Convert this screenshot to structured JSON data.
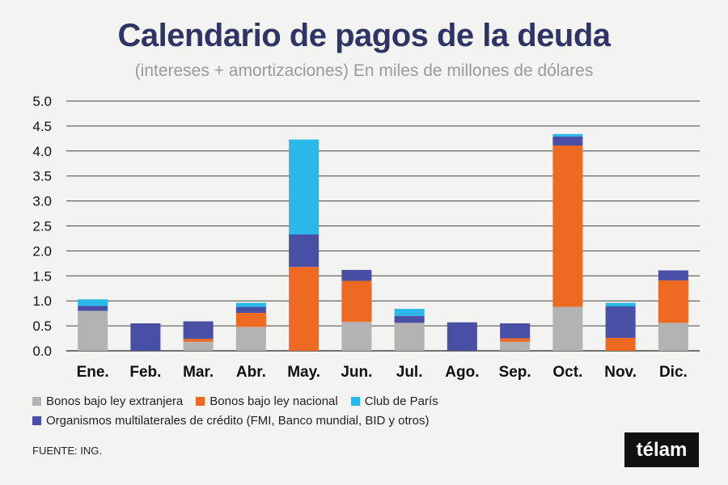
{
  "chart_data": {
    "type": "bar",
    "stacked": true,
    "title": "Calendario de pagos de la deuda",
    "subtitle": "(intereses + amortizaciones) En miles de millones de dólares",
    "categories": [
      "Ene.",
      "Feb.",
      "Mar.",
      "Abr.",
      "May.",
      "Jun.",
      "Jul.",
      "Ago.",
      "Sep.",
      "Oct.",
      "Nov.",
      "Dic."
    ],
    "yticks": [
      "0.0",
      "0.5",
      "1.0",
      "1.5",
      "2.0",
      "2.5",
      "3.0",
      "3.5",
      "4.0",
      "4.5",
      "5.0"
    ],
    "ylim": [
      0,
      5
    ],
    "grid": true,
    "series": [
      {
        "name": "Bonos bajo ley extranjera",
        "color": "#b3b3b3",
        "values": [
          0.8,
          0,
          0.18,
          0.48,
          0,
          0.58,
          0.56,
          0,
          0.18,
          0.88,
          0,
          0.56
        ]
      },
      {
        "name": "Bonos bajo ley nacional",
        "color": "#ee6a22",
        "values": [
          0,
          0,
          0.06,
          0.28,
          1.68,
          0.82,
          0,
          0,
          0.07,
          3.23,
          0.26,
          0.85
        ]
      },
      {
        "name": "Organismos multilaterales de crédito (FMI, Banco mundial, BID y otros)",
        "color": "#4a4fa6",
        "values": [
          0.1,
          0.55,
          0.35,
          0.12,
          0.65,
          0.22,
          0.14,
          0.57,
          0.3,
          0.18,
          0.63,
          0.2
        ]
      },
      {
        "name": "Club de París",
        "color": "#29b8e8",
        "values": [
          0.13,
          0,
          0,
          0.08,
          1.9,
          0,
          0.14,
          0,
          0,
          0.05,
          0.07,
          0
        ]
      }
    ],
    "legend_order": [
      0,
      1,
      3,
      2
    ],
    "legend_position": "bottom-left"
  },
  "source": "FUENTE: ING.",
  "logo": "télam"
}
